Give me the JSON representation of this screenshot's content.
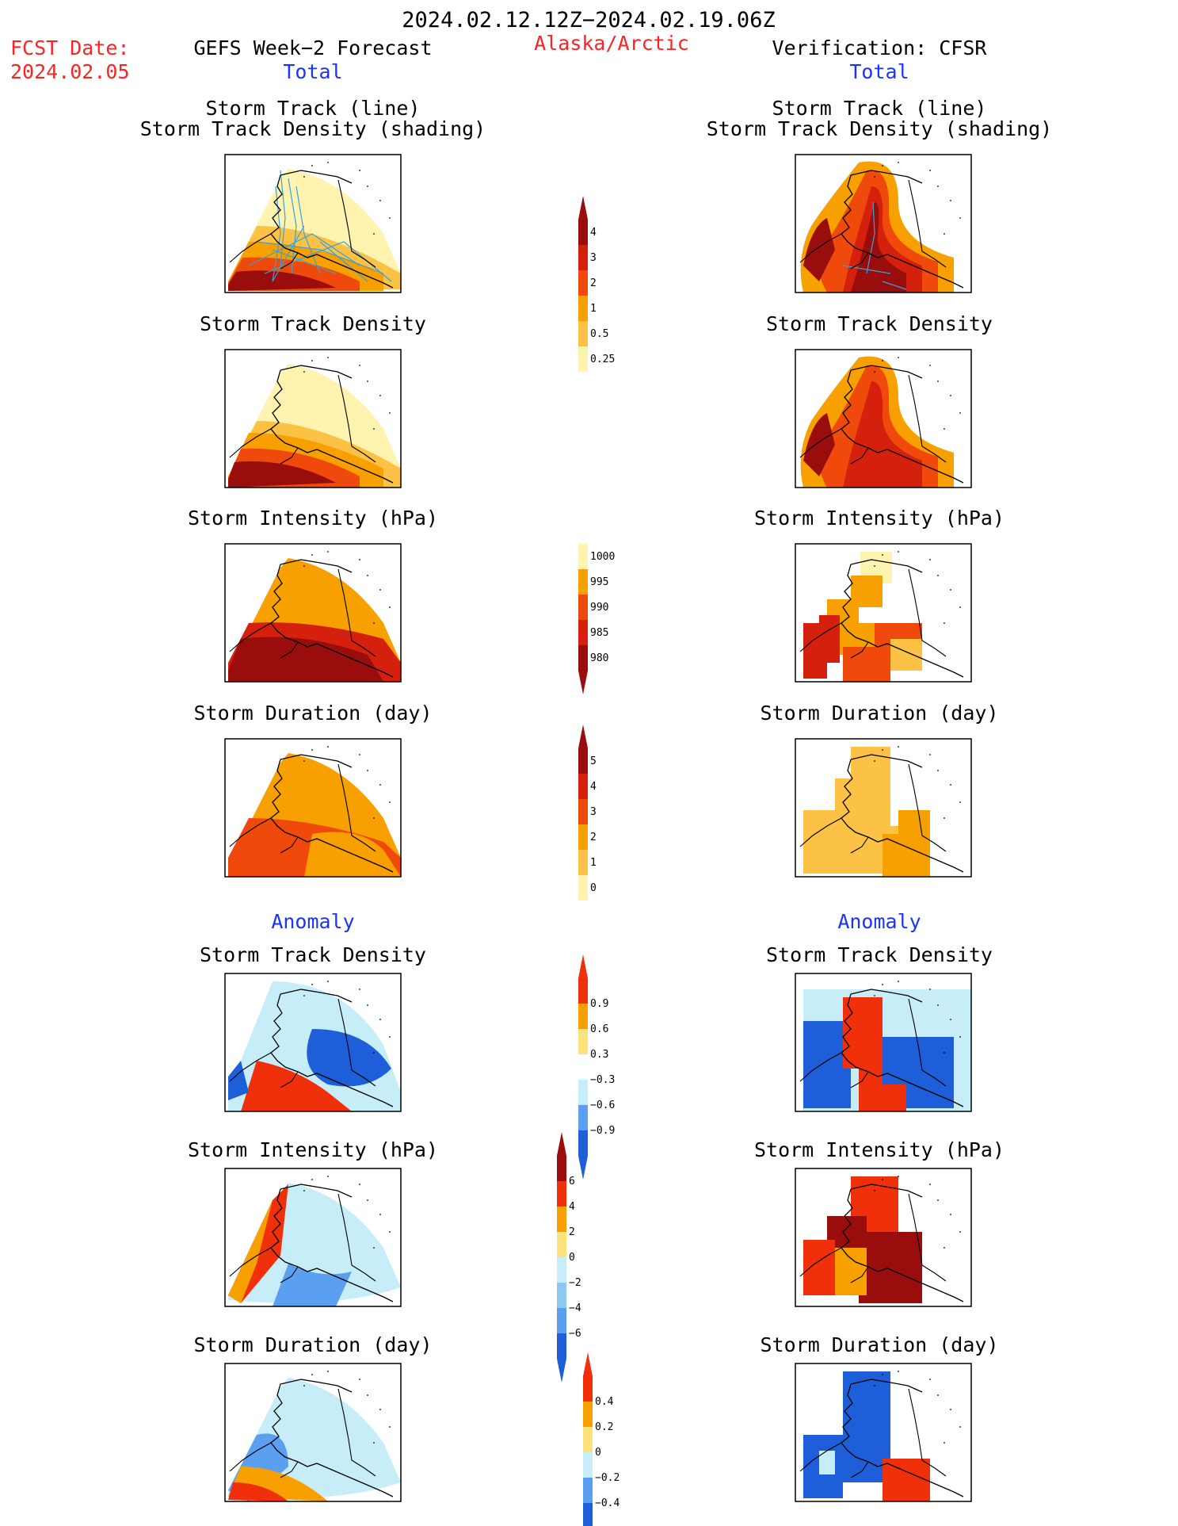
{
  "header": {
    "date_range": "2024.02.12.12Z−2024.02.19.06Z",
    "fcst_label": "FCST Date:",
    "fcst_date": "2024.02.05",
    "forecast_title": "GEFS Week−2 Forecast",
    "region": "Alaska/Arctic",
    "verification_title": "Verification: CFSR",
    "total_left": "Total",
    "total_right": "Total",
    "anomaly_left": "Anomaly",
    "anomaly_right": "Anomaly"
  },
  "panel_titles": {
    "track_line": "Storm Track (line)",
    "track_density_shading": "Storm Track Density (shading)",
    "track_density": "Storm Track Density",
    "intensity": "Storm Intensity (hPa)",
    "duration": "Storm Duration (day)"
  },
  "colors": {
    "dark_red": "#9a0d0d",
    "red": "#d4200c",
    "red_orange": "#f0490c",
    "orange": "#f7a000",
    "yellow_orange": "#fbc245",
    "light_yellow": "#fff3b0",
    "anom_red": "#f0300a",
    "anom_dark_blue": "#1e5ed8",
    "anom_mid_blue": "#5a9ff0",
    "anom_light_blue": "#c7eef8",
    "track_line": "#3aa0d8"
  },
  "chart_data": [
    {
      "type": "heatmap",
      "title": "Storm Track Density",
      "colorbar_ticks": [
        "4",
        "3",
        "2",
        "1",
        "0.5",
        "0.25"
      ],
      "colorbar_values": [
        4,
        3,
        2,
        1,
        0.5,
        0.25
      ],
      "colors": [
        "#9a0d0d",
        "#d4200c",
        "#f0490c",
        "#f7a000",
        "#fbc245",
        "#fff3b0"
      ]
    },
    {
      "type": "heatmap",
      "title": "Storm Intensity (hPa)",
      "colorbar_ticks": [
        "1000",
        "995",
        "990",
        "985",
        "980"
      ],
      "colorbar_values": [
        1000,
        995,
        990,
        985,
        980
      ],
      "colors": [
        "#fff3b0",
        "#f7a000",
        "#f0490c",
        "#d4200c",
        "#9a0d0d"
      ]
    },
    {
      "type": "heatmap",
      "title": "Storm Duration (day)",
      "colorbar_ticks": [
        "5",
        "4",
        "3",
        "2",
        "1",
        "0"
      ],
      "colorbar_values": [
        5,
        4,
        3,
        2,
        1,
        0
      ],
      "colors": [
        "#9a0d0d",
        "#d4200c",
        "#f0490c",
        "#f7a000",
        "#fbc245",
        "#fff3b0"
      ]
    },
    {
      "type": "heatmap",
      "title": "Storm Track Density",
      "colorbar_ticks": [
        "0.9",
        "0.6",
        "0.3",
        "−0.3",
        "−0.6",
        "−0.9"
      ],
      "colorbar_values": [
        0.9,
        0.6,
        0.3,
        -0.3,
        -0.6,
        -0.9
      ],
      "colors": [
        "#f0300a",
        "#f7a000",
        "#fbe27a",
        "#ffffff",
        "#c7eef8",
        "#5a9ff0",
        "#1e5ed8"
      ]
    },
    {
      "type": "heatmap",
      "title": "Storm Intensity (hPa)",
      "colorbar_ticks": [
        "6",
        "4",
        "2",
        "0",
        "−2",
        "−4",
        "−6"
      ],
      "colorbar_values": [
        6,
        4,
        2,
        0,
        -2,
        -4,
        -6
      ],
      "colors": [
        "#9a0d0d",
        "#f0300a",
        "#f7a000",
        "#fbe27a",
        "#c7eef8",
        "#8cc8f2",
        "#5a9ff0",
        "#1e5ed8"
      ]
    },
    {
      "type": "heatmap",
      "title": "Storm Duration (day)",
      "colorbar_ticks": [
        "0.4",
        "0.2",
        "0",
        "−0.2",
        "−0.4"
      ],
      "colorbar_values": [
        0.4,
        0.2,
        0,
        -0.2,
        -0.4
      ],
      "colors": [
        "#f0300a",
        "#f7a000",
        "#fbe27a",
        "#c7eef8",
        "#5a9ff0",
        "#1e5ed8"
      ]
    }
  ]
}
